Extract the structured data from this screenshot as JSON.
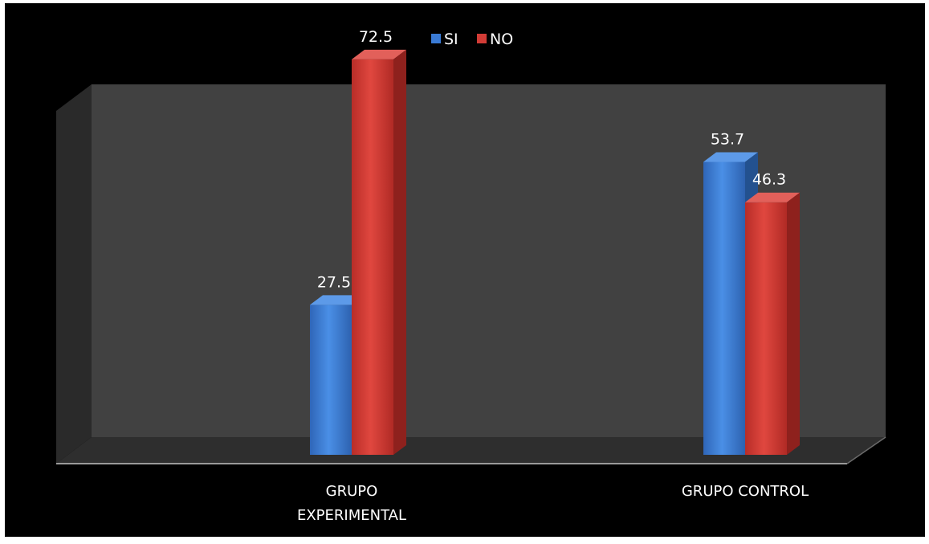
{
  "chart_data": {
    "type": "bar",
    "categories": [
      [
        "GRUPO",
        "EXPERIMENTAL"
      ],
      [
        "GRUPO CONTROL"
      ]
    ],
    "series": [
      {
        "name": "SI",
        "values": [
          27.5,
          53.7
        ],
        "color": "#3a7bd5"
      },
      {
        "name": "NO",
        "values": [
          72.5,
          46.3
        ],
        "color": "#d23c36"
      }
    ],
    "data_labels": [
      [
        "27.5",
        "53.7"
      ],
      [
        "72.5",
        "46.3"
      ]
    ],
    "title": "",
    "xlabel": "",
    "ylabel": "",
    "ylim": [
      0,
      80
    ],
    "grid": false,
    "legend": "top-center",
    "style": "3d-clustered-column",
    "background": "#000000",
    "wall_color": "#404040",
    "floor_color": "#2e2e2e"
  }
}
